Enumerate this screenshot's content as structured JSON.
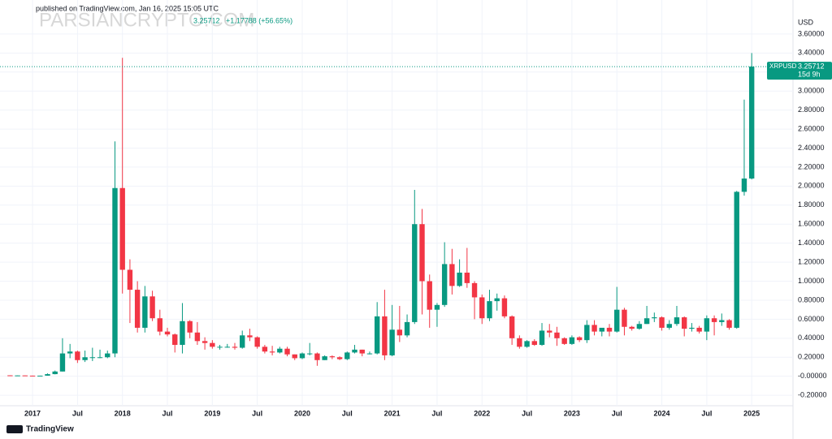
{
  "chart_data": {
    "type": "candlestick",
    "header": "published on TradingView.com, Jan 16, 2025 15:05 UTC",
    "watermark": "PARSIANCRYPTO.COM",
    "change": "+1.17788 (+56.65%)",
    "currency": "USD",
    "symbol": "XRPUSD",
    "countdown": "15d 9h",
    "brand": "TradingView",
    "up_color": "#089981",
    "down_color": "#f23645",
    "categories": [
      null,
      null,
      null,
      "2017",
      null,
      null,
      null,
      null,
      null,
      "Jul",
      null,
      null,
      null,
      null,
      null,
      "2018",
      null,
      null,
      null,
      null,
      null,
      "Jul",
      null,
      null,
      null,
      null,
      null,
      "2019",
      null,
      null,
      null,
      null,
      null,
      "Jul",
      null,
      null,
      null,
      null,
      null,
      "2020",
      null,
      null,
      null,
      null,
      null,
      "Jul",
      null,
      null,
      null,
      null,
      null,
      "2021",
      null,
      null,
      null,
      null,
      null,
      "Jul",
      null,
      null,
      null,
      null,
      null,
      "2022",
      null,
      null,
      null,
      null,
      null,
      "Jul",
      null,
      null,
      null,
      null,
      null,
      "2023",
      null,
      null,
      null,
      null,
      null,
      "Jul",
      null,
      null,
      null,
      null,
      null,
      "2024",
      null,
      null,
      null,
      null,
      null,
      "Jul",
      null,
      null,
      null,
      null,
      null,
      "2025"
    ],
    "open": [
      0.0098,
      0.0077,
      0.0087,
      0.0065,
      0.0063,
      0.0063,
      0.0224,
      0.05,
      0.24,
      0.26,
      0.17,
      0.2,
      0.2,
      0.2,
      0.24,
      1.98,
      1.12,
      0.91,
      0.51,
      0.84,
      0.61,
      0.47,
      0.44,
      0.33,
      0.58,
      0.46,
      0.37,
      0.35,
      0.31,
      0.31,
      0.31,
      0.3,
      0.43,
      0.41,
      0.31,
      0.26,
      0.25,
      0.29,
      0.23,
      0.19,
      0.24,
      0.24,
      0.17,
      0.21,
      0.2,
      0.18,
      0.25,
      0.28,
      0.24,
      0.24,
      0.63,
      0.22,
      0.49,
      0.43,
      0.57,
      1.6,
      1.0,
      0.7,
      0.75,
      1.18,
      0.95,
      1.09,
      0.98,
      0.83,
      0.61,
      0.79,
      0.82,
      0.63,
      0.4,
      0.31,
      0.37,
      0.33,
      0.48,
      0.46,
      0.4,
      0.34,
      0.41,
      0.38,
      0.54,
      0.47,
      0.51,
      0.47,
      0.7,
      0.52,
      0.5,
      0.55,
      0.61,
      0.62,
      0.51,
      0.55,
      0.62,
      0.5,
      0.51,
      0.47,
      0.61,
      0.57,
      0.59,
      0.51,
      1.94,
      2.08
    ],
    "high": [
      0.0105,
      0.0095,
      0.009,
      0.007,
      0.0065,
      0.03,
      0.06,
      0.4,
      0.34,
      0.27,
      0.27,
      0.3,
      0.28,
      0.27,
      2.47,
      3.35,
      1.23,
      1.0,
      0.95,
      0.9,
      0.7,
      0.51,
      0.45,
      0.77,
      0.59,
      0.57,
      0.41,
      0.38,
      0.33,
      0.34,
      0.35,
      0.48,
      0.5,
      0.42,
      0.33,
      0.32,
      0.31,
      0.31,
      0.23,
      0.25,
      0.35,
      0.25,
      0.22,
      0.22,
      0.21,
      0.26,
      0.33,
      0.28,
      0.26,
      0.78,
      0.91,
      0.75,
      0.74,
      0.65,
      1.96,
      1.76,
      1.07,
      0.77,
      1.41,
      1.34,
      1.23,
      1.35,
      1.0,
      0.86,
      0.91,
      0.87,
      0.85,
      0.64,
      0.43,
      0.38,
      0.39,
      0.56,
      0.55,
      0.52,
      0.41,
      0.43,
      0.42,
      0.59,
      0.59,
      0.49,
      0.55,
      0.94,
      0.72,
      0.53,
      0.58,
      0.74,
      0.67,
      0.63,
      0.59,
      0.74,
      0.63,
      0.56,
      0.53,
      0.64,
      0.64,
      0.66,
      0.6,
      1.95,
      2.91,
      3.4
    ],
    "low": [
      0.0075,
      0.0074,
      0.006,
      0.006,
      0.0058,
      0.0061,
      0.02,
      0.05,
      0.19,
      0.14,
      0.15,
      0.16,
      0.19,
      0.19,
      0.2,
      0.87,
      0.56,
      0.46,
      0.46,
      0.58,
      0.43,
      0.42,
      0.25,
      0.24,
      0.4,
      0.33,
      0.28,
      0.29,
      0.28,
      0.3,
      0.28,
      0.29,
      0.37,
      0.29,
      0.24,
      0.22,
      0.24,
      0.21,
      0.17,
      0.18,
      0.22,
      0.11,
      0.17,
      0.18,
      0.17,
      0.17,
      0.24,
      0.21,
      0.23,
      0.23,
      0.17,
      0.21,
      0.36,
      0.41,
      0.55,
      0.65,
      0.51,
      0.52,
      0.73,
      0.86,
      0.94,
      0.93,
      0.6,
      0.55,
      0.58,
      0.69,
      0.61,
      0.33,
      0.29,
      0.3,
      0.32,
      0.32,
      0.41,
      0.32,
      0.33,
      0.33,
      0.36,
      0.35,
      0.43,
      0.42,
      0.42,
      0.46,
      0.43,
      0.48,
      0.49,
      0.55,
      0.57,
      0.48,
      0.49,
      0.53,
      0.42,
      0.47,
      0.45,
      0.38,
      0.43,
      0.53,
      0.49,
      0.5,
      1.9,
      2.07
    ],
    "close": [
      0.0077,
      0.0087,
      0.0065,
      0.0063,
      0.0063,
      0.0224,
      0.05,
      0.24,
      0.26,
      0.17,
      0.2,
      0.2,
      0.2,
      0.24,
      1.98,
      1.12,
      0.91,
      0.51,
      0.84,
      0.61,
      0.47,
      0.44,
      0.33,
      0.58,
      0.46,
      0.37,
      0.35,
      0.31,
      0.31,
      0.31,
      0.3,
      0.43,
      0.41,
      0.31,
      0.26,
      0.25,
      0.29,
      0.23,
      0.19,
      0.24,
      0.24,
      0.17,
      0.21,
      0.2,
      0.18,
      0.25,
      0.28,
      0.24,
      0.24,
      0.63,
      0.22,
      0.49,
      0.43,
      0.57,
      1.6,
      1.0,
      0.7,
      0.75,
      1.18,
      0.95,
      1.09,
      0.98,
      0.83,
      0.61,
      0.79,
      0.82,
      0.63,
      0.4,
      0.31,
      0.37,
      0.33,
      0.48,
      0.46,
      0.4,
      0.34,
      0.41,
      0.38,
      0.54,
      0.47,
      0.51,
      0.47,
      0.7,
      0.52,
      0.5,
      0.55,
      0.61,
      0.62,
      0.51,
      0.55,
      0.62,
      0.5,
      0.51,
      0.47,
      0.61,
      0.57,
      0.59,
      0.51,
      1.94,
      2.08,
      3.25712
    ],
    "ylim": [
      -0.31,
      3.77
    ],
    "yticks": [
      {
        "value": -0.2,
        "label": "-0.20000"
      },
      {
        "value": 0,
        "label": "-0.00000"
      },
      {
        "value": 0.2,
        "label": "0.20000"
      },
      {
        "value": 0.4,
        "label": "0.40000"
      },
      {
        "value": 0.6,
        "label": "0.60000"
      },
      {
        "value": 0.8,
        "label": "0.80000"
      },
      {
        "value": 1.0,
        "label": "1.00000"
      },
      {
        "value": 1.2,
        "label": "1.20000"
      },
      {
        "value": 1.4,
        "label": "1.40000"
      },
      {
        "value": 1.6,
        "label": "1.60000"
      },
      {
        "value": 1.8,
        "label": "1.80000"
      },
      {
        "value": 2.0,
        "label": "2.00000"
      },
      {
        "value": 2.2,
        "label": "2.20000"
      },
      {
        "value": 2.4,
        "label": "2.40000"
      },
      {
        "value": 2.6,
        "label": "2.60000"
      },
      {
        "value": 2.8,
        "label": "2.80000"
      },
      {
        "value": 3.0,
        "label": "3.00000"
      },
      {
        "value": 3.2,
        "label": "3.20000"
      },
      {
        "value": 3.4,
        "label": "3.40000"
      },
      {
        "value": 3.6,
        "label": "3.60000"
      }
    ],
    "grid": true
  }
}
